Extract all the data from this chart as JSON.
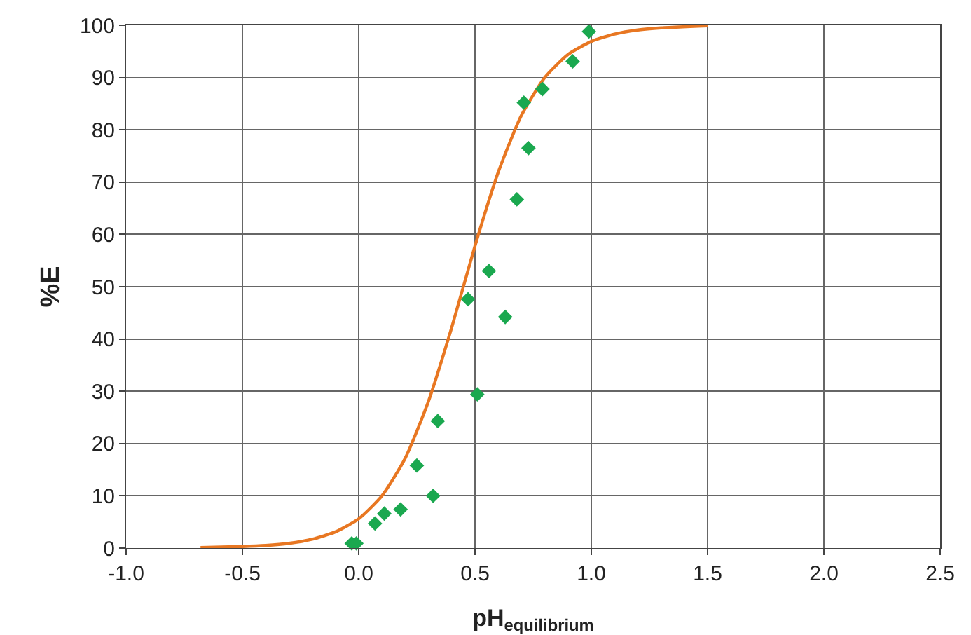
{
  "chart_data": {
    "type": "scatter",
    "xlabel": "pH$_{equilibrium}$",
    "ylabel": "%E",
    "xlim": [
      -1.0,
      2.5
    ],
    "xticks": [
      {
        "value": -1,
        "label": "-1.0"
      },
      {
        "value": -0.5,
        "label": "-0.5"
      },
      {
        "value": 0,
        "label": "0.0"
      },
      {
        "value": 0.5,
        "label": "0.5"
      },
      {
        "value": 1,
        "label": "1.0"
      },
      {
        "value": 1.5,
        "label": "1.5"
      },
      {
        "value": 2,
        "label": "2.0"
      },
      {
        "value": 2.5,
        "label": "2.5"
      }
    ],
    "ylim": [
      0,
      100
    ],
    "yticks": [
      0,
      10,
      20,
      30,
      40,
      50,
      60,
      70,
      80,
      90,
      100
    ],
    "grid": true,
    "series": [
      {
        "type": "line",
        "color": "#e87722",
        "marker": "none",
        "line_style": "solid",
        "x": [
          -0.68,
          -0.5,
          -0.4,
          -0.3,
          -0.2,
          -0.1,
          0,
          0.1,
          0.2,
          0.3,
          0.4,
          0.5,
          0.6,
          0.7,
          0.8,
          0.9,
          1.0,
          1.1,
          1.2,
          1.3,
          1.5
        ],
        "values": [
          0.1,
          0.3,
          0.5,
          0.9,
          1.7,
          3.1,
          5.6,
          10.0,
          17.2,
          28.1,
          42.2,
          57.8,
          71.9,
          82.8,
          90.0,
          94.4,
          96.9,
          98.3,
          99.1,
          99.5,
          99.9
        ]
      },
      {
        "color": "#1aa84f",
        "marker": "diamond",
        "x": [
          -0.03,
          -0.01,
          0.07,
          0.11,
          0.18,
          0.25,
          0.32,
          0.34,
          0.47,
          0.51,
          0.56,
          0.63,
          0.68,
          0.71,
          0.73,
          0.79,
          0.92,
          0.99
        ],
        "values": [
          0.9,
          0.9,
          4.7,
          6.6,
          7.4,
          15.8,
          10.0,
          24.3,
          47.6,
          29.4,
          53.0,
          44.2,
          66.7,
          85.2,
          76.5,
          87.8,
          93.1,
          98.8
        ]
      }
    ]
  }
}
